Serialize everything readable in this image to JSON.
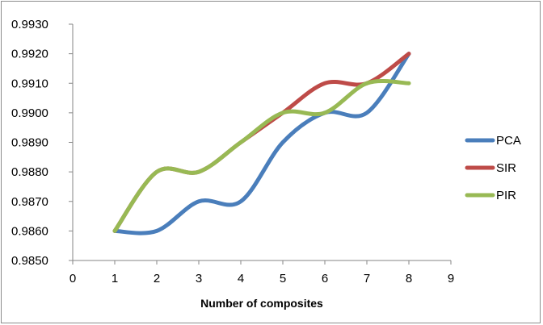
{
  "chart_data": {
    "type": "line",
    "title": "",
    "xlabel": "Number of composites",
    "ylabel": "",
    "x": [
      1,
      2,
      3,
      4,
      5,
      6,
      7,
      8
    ],
    "xlim": [
      0,
      9
    ],
    "ylim": [
      0.985,
      0.993
    ],
    "x_ticks": [
      "0",
      "1",
      "2",
      "3",
      "4",
      "5",
      "6",
      "7",
      "8",
      "9"
    ],
    "y_ticks": [
      "0.9850",
      "0.9860",
      "0.9870",
      "0.9880",
      "0.9890",
      "0.9900",
      "0.9910",
      "0.9920",
      "0.9930"
    ],
    "series": [
      {
        "name": "PCA",
        "color": "#4a7ebb",
        "values": [
          0.986,
          0.986,
          0.987,
          0.987,
          0.989,
          0.99,
          0.99,
          0.992
        ]
      },
      {
        "name": "SIR",
        "color": "#be4b48",
        "values": [
          0.986,
          0.988,
          0.988,
          0.989,
          0.99,
          0.991,
          0.991,
          0.992
        ]
      },
      {
        "name": "PIR",
        "color": "#98b954",
        "values": [
          0.986,
          0.988,
          0.988,
          0.989,
          0.99,
          0.99,
          0.991,
          0.991
        ]
      }
    ],
    "legend_position": "right",
    "grid": false
  }
}
